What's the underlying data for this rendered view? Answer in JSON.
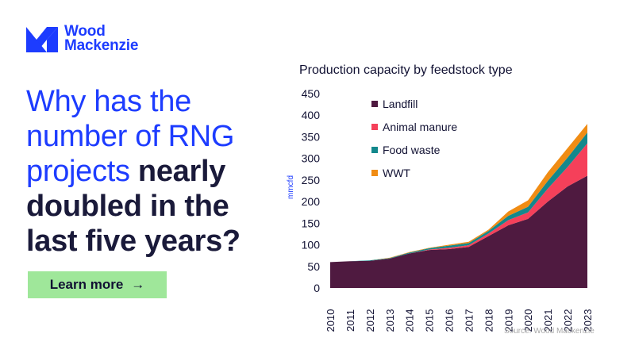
{
  "brand": {
    "line1": "Wood",
    "line2": "Mackenzie"
  },
  "headline": {
    "regular": "Why has the number of RNG projects",
    "bold": "nearly doubled in the last five years?"
  },
  "cta": {
    "label": "Learn more",
    "arrow": "→"
  },
  "source": "Source: Wood Mackenzie",
  "colors": {
    "accent": "#1d3cff",
    "dark": "#1a1a3a",
    "cta_bg": "#9fe79a"
  },
  "chart_data": {
    "type": "area",
    "stacked": true,
    "title": "Production capacity by feedstock type",
    "xlabel": "",
    "ylabel": "mmcfd",
    "ylim": [
      0,
      450
    ],
    "yticks": [
      0,
      50,
      100,
      150,
      200,
      250,
      300,
      350,
      400,
      450
    ],
    "categories": [
      "2010",
      "2011",
      "2012",
      "2013",
      "2014",
      "2015",
      "2016",
      "2017",
      "2018",
      "2019",
      "2020",
      "2021",
      "2022",
      "2023"
    ],
    "series": [
      {
        "name": "Landfill",
        "color": "#4f1a40",
        "values": [
          60,
          62,
          63,
          68,
          80,
          88,
          90,
          95,
          120,
          145,
          160,
          200,
          235,
          260
        ]
      },
      {
        "name": "Animal manure",
        "color": "#f5405a",
        "values": [
          0,
          0,
          0,
          0,
          0,
          1,
          3,
          4,
          6,
          12,
          15,
          30,
          45,
          75
        ]
      },
      {
        "name": "Food waste",
        "color": "#13888c",
        "values": [
          0,
          0,
          1,
          1,
          2,
          3,
          5,
          5,
          6,
          10,
          13,
          18,
          22,
          25
        ]
      },
      {
        "name": "WWT",
        "color": "#f08c14",
        "values": [
          0,
          0,
          0,
          1,
          1,
          1,
          2,
          3,
          3,
          10,
          15,
          20,
          22,
          20
        ]
      }
    ],
    "legend_position": "top-left inside plot"
  }
}
